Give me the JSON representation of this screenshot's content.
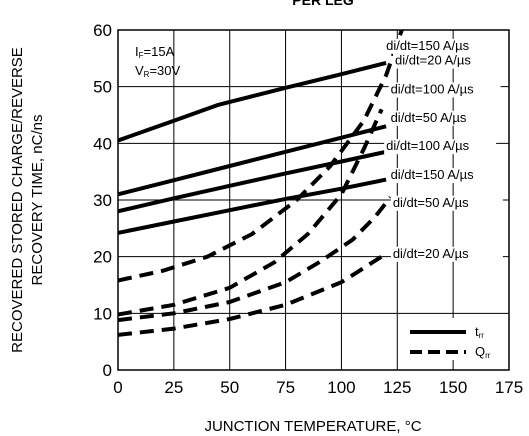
{
  "chart_data": {
    "type": "line",
    "title": "PER LEG",
    "xlabel": "JUNCTION TEMPERATURE, °C",
    "ylabel_line1": "RECOVERED STORED CHARGE/REVERSE",
    "ylabel_line2": "RECOVERY TIME, nC/ns",
    "xlim": [
      0,
      175
    ],
    "ylim": [
      0,
      60
    ],
    "x_ticks": [
      "0",
      "25",
      "50",
      "75",
      "100",
      "125",
      "150",
      "175"
    ],
    "y_ticks": [
      "0",
      "10",
      "20",
      "30",
      "40",
      "50",
      "60"
    ],
    "grid": true,
    "conditions": {
      "if_main": "I",
      "if_sub": "F",
      "if_val": "=15A",
      "vr_main": "V",
      "vr_sub": "R",
      "vr_val": "=30V"
    },
    "legend": {
      "position": "bottom-right",
      "trr_main": "t",
      "trr_sub": "rr",
      "qrr_main": "Q",
      "qrr_sub": "rr"
    },
    "series": [
      {
        "kind": "trr",
        "style": "solid",
        "label": "di/dt=150 A/µs",
        "label_pos": [
          120,
          56.5
        ],
        "x": [
          0,
          25,
          45,
          75,
          100,
          120
        ],
        "y": [
          40.5,
          44,
          46.8,
          49.8,
          52.2,
          54.2
        ]
      },
      {
        "kind": "trr",
        "style": "solid",
        "label": "di/dt=100 A/µs",
        "label_pos": [
          122,
          48.8
        ],
        "x": [
          0,
          25,
          50,
          75,
          100,
          120
        ],
        "y": [
          31,
          33.5,
          36,
          38.5,
          41,
          43
        ]
      },
      {
        "kind": "trr",
        "style": "solid",
        "label": "di/dt=50 A/µs",
        "label_pos": [
          122,
          43.8
        ],
        "x": [
          0,
          25,
          50,
          75,
          100,
          120
        ],
        "y": [
          28,
          30.3,
          32.5,
          34.7,
          36.8,
          38.5
        ]
      },
      {
        "kind": "trr",
        "style": "solid",
        "label": "di/dt=20 A/µs",
        "label_pos": [
          124,
          53.9
        ],
        "x": [
          0,
          25,
          50,
          75,
          100,
          120
        ],
        "y": [
          24.2,
          26.2,
          28.2,
          30.2,
          32,
          33.6
        ]
      },
      {
        "kind": "qrr",
        "style": "dashed",
        "label": "di/dt=150 A/µs",
        "label_pos": [
          122,
          33.7
        ],
        "x": [
          0,
          20,
          40,
          60,
          80,
          95,
          110,
          120,
          127
        ],
        "y": [
          15.8,
          17.5,
          20,
          24,
          30,
          36,
          44,
          52,
          60
        ]
      },
      {
        "kind": "qrr",
        "style": "dashed",
        "label": "di/dt=100 A/µs",
        "label_pos": [
          120,
          38.8
        ],
        "x": [
          0,
          25,
          50,
          70,
          85,
          100,
          110,
          118
        ],
        "y": [
          9.8,
          11.5,
          14.5,
          19,
          24,
          31,
          39,
          46
        ]
      },
      {
        "kind": "qrr",
        "style": "dashed",
        "label": "di/dt=50 A/µs",
        "label_pos": [
          123,
          28.8
        ],
        "x": [
          0,
          25,
          50,
          75,
          90,
          105,
          115,
          122
        ],
        "y": [
          8.8,
          10,
          12,
          15.5,
          19,
          23,
          27,
          30.5
        ]
      },
      {
        "kind": "qrr",
        "style": "dashed",
        "label": "di/dt=20 A/µs",
        "label_pos": [
          123,
          19.8
        ],
        "x": [
          0,
          25,
          50,
          75,
          100,
          120
        ],
        "y": [
          6.2,
          7.3,
          9,
          11.5,
          15.5,
          20.5
        ]
      }
    ]
  }
}
